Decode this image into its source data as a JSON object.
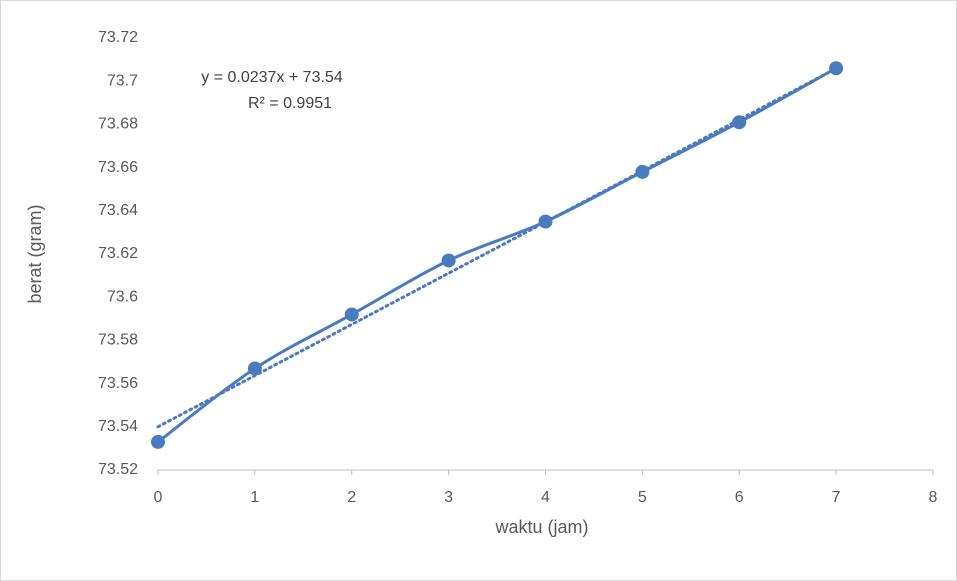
{
  "chart_data": {
    "type": "line",
    "x_label": "waktu (jam)",
    "y_label": "berat (gram)",
    "x": [
      0,
      1,
      2,
      3,
      4,
      5,
      6,
      7
    ],
    "series": [
      {
        "color": "#4a7bbf",
        "values": [
          73.533,
          73.567,
          73.592,
          73.617,
          73.635,
          73.658,
          73.681,
          73.706
        ]
      }
    ],
    "xlim": [
      0,
      8
    ],
    "xticks": [
      0,
      1,
      2,
      3,
      4,
      5,
      6,
      7,
      8
    ],
    "ylim": [
      73.52,
      73.72
    ],
    "yticks": [
      73.52,
      73.54,
      73.56,
      73.58,
      73.6,
      73.62,
      73.64,
      73.66,
      73.68,
      73.7,
      73.72
    ],
    "smooth": true,
    "markers": true,
    "grid": false,
    "trendline": {
      "equation": "y = 0.0237x + 73.54",
      "r_squared": "R² = 0.9951",
      "slope": 0.0237,
      "intercept": 73.54,
      "color": "#4a7bbf"
    }
  }
}
